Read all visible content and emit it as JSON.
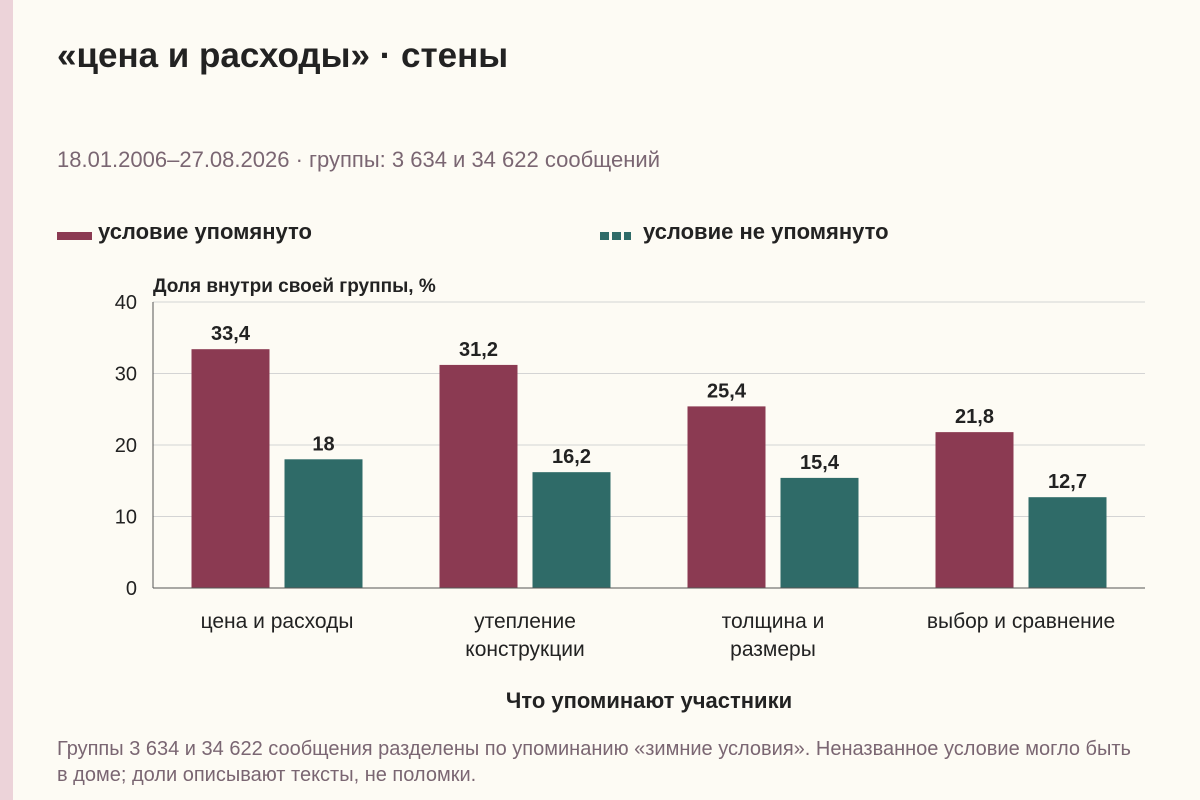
{
  "title": "«цена и расходы» · стены",
  "subtitle": "18.01.2006–27.08.2026 · группы: 3 634 и 34 622 сообщений",
  "legend": [
    {
      "label": "условие упомянуто",
      "color": "#8b3a52"
    },
    {
      "label": "условие не упомянуто",
      "color": "#2f6b68"
    }
  ],
  "footnote": "Группы 3 634 и 34 622 сообщения разделены по упоминанию «зимние условия». Неназванное условие могло быть в доме; доли описывают тексты, не поломки.",
  "chart_data": {
    "type": "bar",
    "ylabel": "Доля внутри своей группы, %",
    "xlabel": "Что упоминают участники",
    "ylim": [
      0,
      40
    ],
    "yticks": [
      0,
      10,
      20,
      30,
      40
    ],
    "grid": true,
    "categories": [
      [
        "цена и расходы"
      ],
      [
        "утепление",
        "конструкции"
      ],
      [
        "толщина и",
        "размеры"
      ],
      [
        "выбор и сравнение"
      ]
    ],
    "series": [
      {
        "name": "условие упомянуто",
        "color": "#8b3a52",
        "values": [
          33.4,
          31.2,
          25.4,
          21.8
        ],
        "labels": [
          "33,4",
          "31,2",
          "25,4",
          "21,8"
        ]
      },
      {
        "name": "условие не упомянуто",
        "color": "#2f6b68",
        "values": [
          18,
          16.2,
          15.4,
          12.7
        ],
        "labels": [
          "18",
          "16,2",
          "15,4",
          "12,7"
        ]
      }
    ]
  }
}
